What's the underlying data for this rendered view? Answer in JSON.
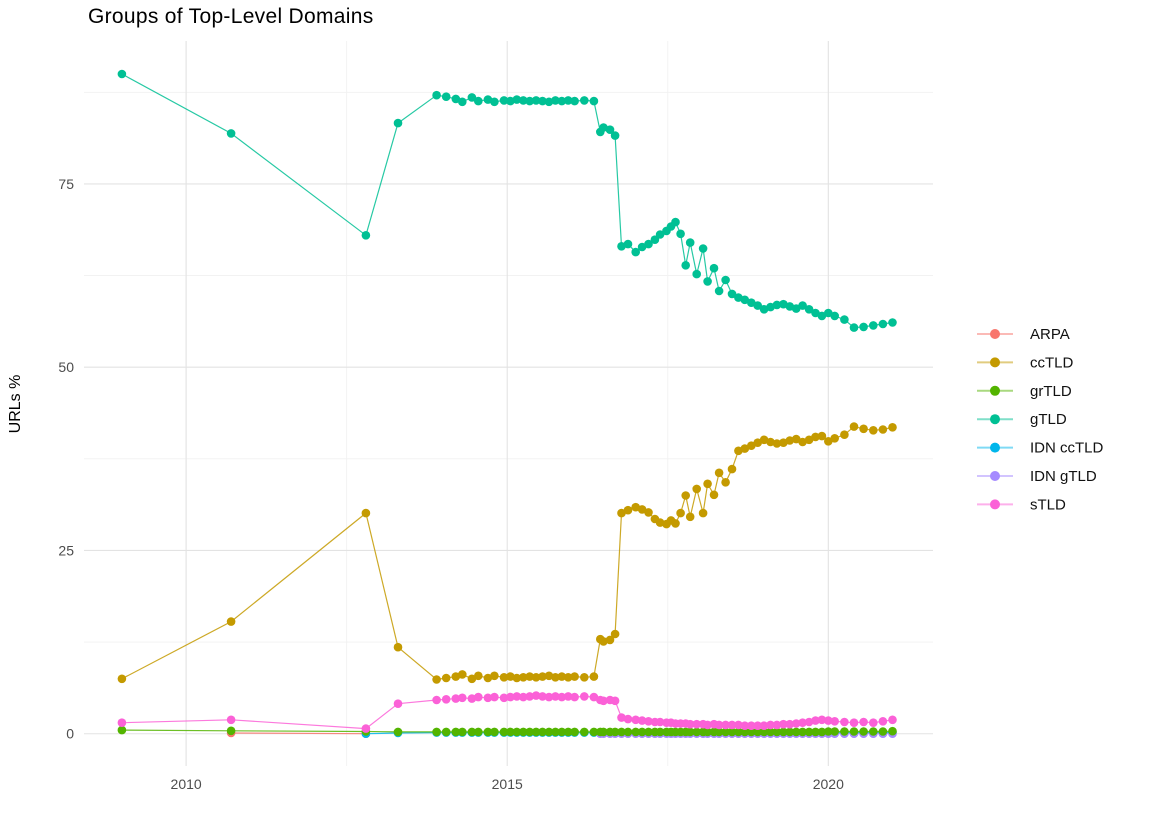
{
  "chart_data": {
    "type": "line",
    "title": "Groups of Top-Level Domains",
    "xlabel": "",
    "ylabel": "URLs %",
    "legend_position": "right",
    "grid": true,
    "xlim": [
      2008.41,
      2021.63
    ],
    "ylim": [
      -4.4,
      94.5
    ],
    "x_ticks": [
      2010,
      2015,
      2020
    ],
    "x_tick_labels": [
      "2010",
      "2015",
      "2020"
    ],
    "x_minor_ticks": [
      2012.5,
      2017.5
    ],
    "y_ticks": [
      0,
      25,
      50,
      75
    ],
    "y_tick_labels": [
      "0",
      "25",
      "50",
      "75"
    ],
    "y_minor_ticks": [
      12.5,
      37.5,
      62.5,
      87.5
    ],
    "draw_order": [
      0,
      4,
      5,
      2,
      1,
      3,
      6
    ],
    "series": [
      {
        "name": "ARPA",
        "color": "#F8766D",
        "x": [
          2010.7,
          2012.8
        ],
        "y": [
          0.1,
          0.0
        ]
      },
      {
        "name": "ccTLD",
        "color": "#C49A00",
        "x": [
          2009.0,
          2010.7,
          2012.8,
          2013.3,
          2013.9,
          2014.05,
          2014.2,
          2014.3,
          2014.45,
          2014.55,
          2014.7,
          2014.8,
          2014.95,
          2015.05,
          2015.15,
          2015.25,
          2015.35,
          2015.45,
          2015.55,
          2015.65,
          2015.75,
          2015.85,
          2015.95,
          2016.05,
          2016.2,
          2016.35,
          2016.45,
          2016.5,
          2016.6,
          2016.68,
          2016.78,
          2016.88,
          2017.0,
          2017.1,
          2017.2,
          2017.3,
          2017.38,
          2017.48,
          2017.55,
          2017.62,
          2017.7,
          2017.78,
          2017.85,
          2017.95,
          2018.05,
          2018.12,
          2018.22,
          2018.3,
          2018.4,
          2018.5,
          2018.6,
          2018.7,
          2018.8,
          2018.9,
          2019.0,
          2019.1,
          2019.2,
          2019.3,
          2019.4,
          2019.5,
          2019.6,
          2019.7,
          2019.8,
          2019.9,
          2020.0,
          2020.1,
          2020.25,
          2020.4,
          2020.55,
          2020.7,
          2020.85,
          2021.0
        ],
        "y": [
          7.5,
          15.3,
          30.1,
          11.8,
          7.4,
          7.6,
          7.8,
          8.1,
          7.5,
          7.9,
          7.6,
          7.9,
          7.7,
          7.8,
          7.6,
          7.7,
          7.8,
          7.7,
          7.8,
          7.9,
          7.7,
          7.8,
          7.7,
          7.8,
          7.7,
          7.8,
          12.9,
          12.6,
          12.8,
          13.6,
          30.1,
          30.5,
          30.9,
          30.6,
          30.2,
          29.3,
          28.8,
          28.6,
          29.1,
          28.7,
          30.1,
          32.5,
          29.6,
          33.4,
          30.1,
          34.1,
          32.6,
          35.6,
          34.3,
          36.1,
          38.6,
          38.9,
          39.3,
          39.7,
          40.1,
          39.8,
          39.6,
          39.7,
          40.0,
          40.2,
          39.8,
          40.1,
          40.5,
          40.6,
          39.9,
          40.3,
          40.8,
          41.9,
          41.6,
          41.4,
          41.5,
          41.8
        ]
      },
      {
        "name": "grTLD",
        "color": "#53B400",
        "x": [
          2009.0,
          2010.7,
          2012.8,
          2013.3,
          2013.9,
          2014.05,
          2014.2,
          2014.3,
          2014.45,
          2014.55,
          2014.7,
          2014.8,
          2014.95,
          2015.05,
          2015.15,
          2015.25,
          2015.35,
          2015.45,
          2015.55,
          2015.65,
          2015.75,
          2015.85,
          2015.95,
          2016.05,
          2016.2,
          2016.35,
          2016.45,
          2016.5,
          2016.6,
          2016.68,
          2016.78,
          2016.88,
          2017.0,
          2017.1,
          2017.2,
          2017.3,
          2017.38,
          2017.48,
          2017.55,
          2017.62,
          2017.7,
          2017.78,
          2017.85,
          2017.95,
          2018.05,
          2018.12,
          2018.22,
          2018.3,
          2018.4,
          2018.5,
          2018.6,
          2018.7,
          2018.8,
          2018.9,
          2019.0,
          2019.1,
          2019.2,
          2019.3,
          2019.4,
          2019.5,
          2019.6,
          2019.7,
          2019.8,
          2019.9,
          2020.0,
          2020.1,
          2020.25,
          2020.4,
          2020.55,
          2020.7,
          2020.85,
          2021.0
        ],
        "y": [
          0.5,
          0.4,
          0.3,
          0.25,
          0.25,
          0.25,
          0.25,
          0.25,
          0.25,
          0.25,
          0.25,
          0.25,
          0.25,
          0.25,
          0.25,
          0.25,
          0.25,
          0.25,
          0.25,
          0.25,
          0.25,
          0.25,
          0.25,
          0.25,
          0.25,
          0.25,
          0.25,
          0.25,
          0.25,
          0.25,
          0.25,
          0.25,
          0.25,
          0.25,
          0.25,
          0.25,
          0.25,
          0.25,
          0.25,
          0.25,
          0.25,
          0.25,
          0.25,
          0.25,
          0.25,
          0.25,
          0.25,
          0.25,
          0.25,
          0.25,
          0.25,
          0.25,
          0.25,
          0.25,
          0.25,
          0.25,
          0.25,
          0.25,
          0.25,
          0.25,
          0.25,
          0.25,
          0.25,
          0.25,
          0.3,
          0.3,
          0.3,
          0.3,
          0.3,
          0.3,
          0.3,
          0.35
        ]
      },
      {
        "name": "gTLD",
        "color": "#00C094",
        "x": [
          2009.0,
          2010.7,
          2012.8,
          2013.3,
          2013.9,
          2014.05,
          2014.2,
          2014.3,
          2014.45,
          2014.55,
          2014.7,
          2014.8,
          2014.95,
          2015.05,
          2015.15,
          2015.25,
          2015.35,
          2015.45,
          2015.55,
          2015.65,
          2015.75,
          2015.85,
          2015.95,
          2016.05,
          2016.2,
          2016.35,
          2016.45,
          2016.5,
          2016.6,
          2016.68,
          2016.78,
          2016.88,
          2017.0,
          2017.1,
          2017.2,
          2017.3,
          2017.38,
          2017.48,
          2017.55,
          2017.62,
          2017.7,
          2017.78,
          2017.85,
          2017.95,
          2018.05,
          2018.12,
          2018.22,
          2018.3,
          2018.4,
          2018.5,
          2018.6,
          2018.7,
          2018.8,
          2018.9,
          2019.0,
          2019.1,
          2019.2,
          2019.3,
          2019.4,
          2019.5,
          2019.6,
          2019.7,
          2019.8,
          2019.9,
          2020.0,
          2020.1,
          2020.25,
          2020.4,
          2020.55,
          2020.7,
          2020.85,
          2021.0
        ],
        "y": [
          90.0,
          81.9,
          68.0,
          83.3,
          87.1,
          86.9,
          86.6,
          86.2,
          86.8,
          86.3,
          86.5,
          86.2,
          86.4,
          86.3,
          86.5,
          86.4,
          86.3,
          86.4,
          86.3,
          86.2,
          86.4,
          86.3,
          86.4,
          86.3,
          86.4,
          86.3,
          82.1,
          82.7,
          82.4,
          81.6,
          66.5,
          66.8,
          65.7,
          66.4,
          66.8,
          67.4,
          68.1,
          68.6,
          69.2,
          69.8,
          68.2,
          63.9,
          67.0,
          62.7,
          66.2,
          61.7,
          63.5,
          60.4,
          61.9,
          60.0,
          59.5,
          59.2,
          58.8,
          58.4,
          57.9,
          58.2,
          58.5,
          58.6,
          58.3,
          58.0,
          58.4,
          57.9,
          57.4,
          57.0,
          57.4,
          57.0,
          56.5,
          55.4,
          55.5,
          55.7,
          55.9,
          56.1
        ]
      },
      {
        "name": "IDN ccTLD",
        "color": "#00B6EB",
        "x": [
          2012.8,
          2013.3,
          2013.9,
          2014.05,
          2014.2,
          2014.3,
          2014.45,
          2014.55,
          2014.7,
          2014.8,
          2014.95,
          2015.05,
          2015.15,
          2015.25,
          2015.35,
          2015.45,
          2015.55,
          2015.65,
          2015.75,
          2015.85,
          2015.95,
          2016.05,
          2016.2,
          2016.35,
          2016.45,
          2016.5,
          2016.6,
          2016.68,
          2016.78,
          2016.88,
          2017.0,
          2017.1,
          2017.2,
          2017.3,
          2017.38,
          2017.48,
          2017.55,
          2017.62,
          2017.7,
          2017.78,
          2017.85,
          2017.95,
          2018.05,
          2018.12,
          2018.22,
          2018.3,
          2018.4,
          2018.5,
          2018.6,
          2018.7,
          2018.8,
          2018.9,
          2019.0,
          2019.1,
          2019.2,
          2019.3,
          2019.4,
          2019.5,
          2019.6,
          2019.7,
          2019.8,
          2019.9,
          2020.0,
          2020.1,
          2020.25,
          2020.4,
          2020.55,
          2020.7,
          2020.85,
          2021.0
        ],
        "y": [
          0.0,
          0.1,
          0.15,
          0.15,
          0.15,
          0.15,
          0.15,
          0.15,
          0.15,
          0.15,
          0.15,
          0.15,
          0.15,
          0.15,
          0.15,
          0.15,
          0.15,
          0.15,
          0.15,
          0.15,
          0.15,
          0.15,
          0.15,
          0.15,
          0.15,
          0.15,
          0.15,
          0.15,
          0.15,
          0.15,
          0.15,
          0.15,
          0.15,
          0.15,
          0.15,
          0.15,
          0.15,
          0.15,
          0.15,
          0.15,
          0.15,
          0.15,
          0.15,
          0.15,
          0.15,
          0.15,
          0.15,
          0.15,
          0.15,
          0.15,
          0.15,
          0.15,
          0.15,
          0.15,
          0.15,
          0.15,
          0.15,
          0.15,
          0.15,
          0.15,
          0.15,
          0.15,
          0.15,
          0.15,
          0.15,
          0.15,
          0.15,
          0.15,
          0.15,
          0.15
        ]
      },
      {
        "name": "IDN gTLD",
        "color": "#A58AFF",
        "x": [
          2016.45,
          2016.5,
          2016.6,
          2016.68,
          2016.78,
          2016.88,
          2017.0,
          2017.1,
          2017.2,
          2017.3,
          2017.38,
          2017.48,
          2017.55,
          2017.62,
          2017.7,
          2017.78,
          2017.85,
          2017.95,
          2018.05,
          2018.12,
          2018.22,
          2018.3,
          2018.4,
          2018.5,
          2018.6,
          2018.7,
          2018.8,
          2018.9,
          2019.0,
          2019.1,
          2019.2,
          2019.3,
          2019.4,
          2019.5,
          2019.6,
          2019.7,
          2019.8,
          2019.9,
          2020.0,
          2020.1,
          2020.25,
          2020.4,
          2020.55,
          2020.7,
          2020.85,
          2021.0
        ],
        "y": [
          0.0,
          0.0,
          0.0,
          0.0,
          0.0,
          0.0,
          0.0,
          0.0,
          0.0,
          0.0,
          0.0,
          0.0,
          0.0,
          0.0,
          0.0,
          0.0,
          0.0,
          0.0,
          0.0,
          0.0,
          0.0,
          0.0,
          0.0,
          0.0,
          0.0,
          0.0,
          0.0,
          0.0,
          0.0,
          0.0,
          0.0,
          0.0,
          0.0,
          0.0,
          0.0,
          0.0,
          0.0,
          0.0,
          0.0,
          0.0,
          0.0,
          0.0,
          0.0,
          0.0,
          0.0,
          0.0
        ]
      },
      {
        "name": "sTLD",
        "color": "#FB61D7",
        "x": [
          2009.0,
          2010.7,
          2012.8,
          2013.3,
          2013.9,
          2014.05,
          2014.2,
          2014.3,
          2014.45,
          2014.55,
          2014.7,
          2014.8,
          2014.95,
          2015.05,
          2015.15,
          2015.25,
          2015.35,
          2015.45,
          2015.55,
          2015.65,
          2015.75,
          2015.85,
          2015.95,
          2016.05,
          2016.2,
          2016.35,
          2016.45,
          2016.5,
          2016.6,
          2016.68,
          2016.78,
          2016.88,
          2017.0,
          2017.1,
          2017.2,
          2017.3,
          2017.38,
          2017.48,
          2017.55,
          2017.62,
          2017.7,
          2017.78,
          2017.85,
          2017.95,
          2018.05,
          2018.12,
          2018.22,
          2018.3,
          2018.4,
          2018.5,
          2018.6,
          2018.7,
          2018.8,
          2018.9,
          2019.0,
          2019.1,
          2019.2,
          2019.3,
          2019.4,
          2019.5,
          2019.6,
          2019.7,
          2019.8,
          2019.9,
          2020.0,
          2020.1,
          2020.25,
          2020.4,
          2020.55,
          2020.7,
          2020.85,
          2021.0
        ],
        "y": [
          1.5,
          1.9,
          0.7,
          4.1,
          4.6,
          4.7,
          4.8,
          4.9,
          4.8,
          5.0,
          4.9,
          5.0,
          4.9,
          5.0,
          5.1,
          5.0,
          5.1,
          5.2,
          5.1,
          5.0,
          5.1,
          5.0,
          5.1,
          5.0,
          5.1,
          5.0,
          4.6,
          4.5,
          4.6,
          4.5,
          2.2,
          2.0,
          1.9,
          1.8,
          1.7,
          1.6,
          1.6,
          1.5,
          1.5,
          1.4,
          1.4,
          1.4,
          1.3,
          1.3,
          1.3,
          1.2,
          1.3,
          1.2,
          1.2,
          1.2,
          1.2,
          1.1,
          1.1,
          1.1,
          1.1,
          1.2,
          1.2,
          1.3,
          1.3,
          1.4,
          1.5,
          1.6,
          1.8,
          1.9,
          1.8,
          1.7,
          1.6,
          1.5,
          1.6,
          1.5,
          1.7,
          1.9
        ]
      }
    ]
  }
}
